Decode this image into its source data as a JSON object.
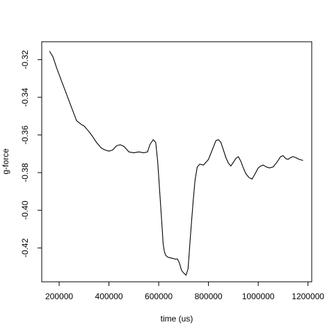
{
  "chart_data": {
    "type": "line",
    "title": "",
    "xlabel": "time (us)",
    "ylabel": "g-force",
    "xlim": [
      130000,
      1215000
    ],
    "ylim": [
      -0.438,
      -0.3105
    ],
    "x_ticks": [
      200000,
      400000,
      600000,
      800000,
      1000000,
      1200000
    ],
    "x_tick_labels": [
      "200000",
      "400000",
      "600000",
      "800000",
      "1000000",
      "1200000"
    ],
    "y_ticks": [
      -0.32,
      -0.34,
      -0.36,
      -0.38,
      -0.4,
      -0.42
    ],
    "y_tick_labels": [
      "-0.32",
      "-0.34",
      "-0.36",
      "-0.38",
      "-0.40",
      "-0.42"
    ],
    "grid": false,
    "line_color": "#000000",
    "series": [
      {
        "x": [
          161000,
          175000,
          190000,
          210000,
          230000,
          250000,
          270000,
          290000,
          300000,
          315000,
          330000,
          350000,
          370000,
          385000,
          400000,
          415000,
          430000,
          445000,
          460000,
          480000,
          500000,
          520000,
          540000,
          555000,
          565000,
          578000,
          588000,
          596000,
          604000,
          612000,
          618000,
          623000,
          628000,
          638000,
          655000,
          668000,
          675000,
          683000,
          692000,
          702000,
          710000,
          718000,
          728000,
          738000,
          746000,
          755000,
          765000,
          780000,
          800000,
          815000,
          830000,
          840000,
          850000,
          860000,
          870000,
          880000,
          890000,
          900000,
          910000,
          920000,
          930000,
          940000,
          950000,
          962000,
          975000,
          990000,
          1000000,
          1010000,
          1020000,
          1032000,
          1045000,
          1060000,
          1075000,
          1090000,
          1100000,
          1110000,
          1120000,
          1130000,
          1140000,
          1150000,
          1165000,
          1180000
        ],
        "y": [
          -0.3155,
          -0.3185,
          -0.3245,
          -0.3315,
          -0.3385,
          -0.3455,
          -0.3525,
          -0.3545,
          -0.3552,
          -0.3575,
          -0.36,
          -0.364,
          -0.367,
          -0.368,
          -0.3686,
          -0.368,
          -0.3658,
          -0.3652,
          -0.366,
          -0.369,
          -0.3695,
          -0.369,
          -0.3695,
          -0.369,
          -0.365,
          -0.3625,
          -0.364,
          -0.374,
          -0.39,
          -0.406,
          -0.418,
          -0.422,
          -0.424,
          -0.425,
          -0.4255,
          -0.426,
          -0.4258,
          -0.428,
          -0.432,
          -0.4335,
          -0.4345,
          -0.431,
          -0.413,
          -0.396,
          -0.384,
          -0.377,
          -0.3755,
          -0.376,
          -0.373,
          -0.368,
          -0.363,
          -0.3625,
          -0.364,
          -0.368,
          -0.372,
          -0.375,
          -0.3765,
          -0.3745,
          -0.3725,
          -0.3715,
          -0.374,
          -0.3775,
          -0.3805,
          -0.3825,
          -0.3835,
          -0.38,
          -0.3775,
          -0.3765,
          -0.376,
          -0.377,
          -0.3775,
          -0.377,
          -0.3745,
          -0.3715,
          -0.371,
          -0.3725,
          -0.373,
          -0.372,
          -0.3715,
          -0.372,
          -0.373,
          -0.3735
        ]
      }
    ]
  }
}
